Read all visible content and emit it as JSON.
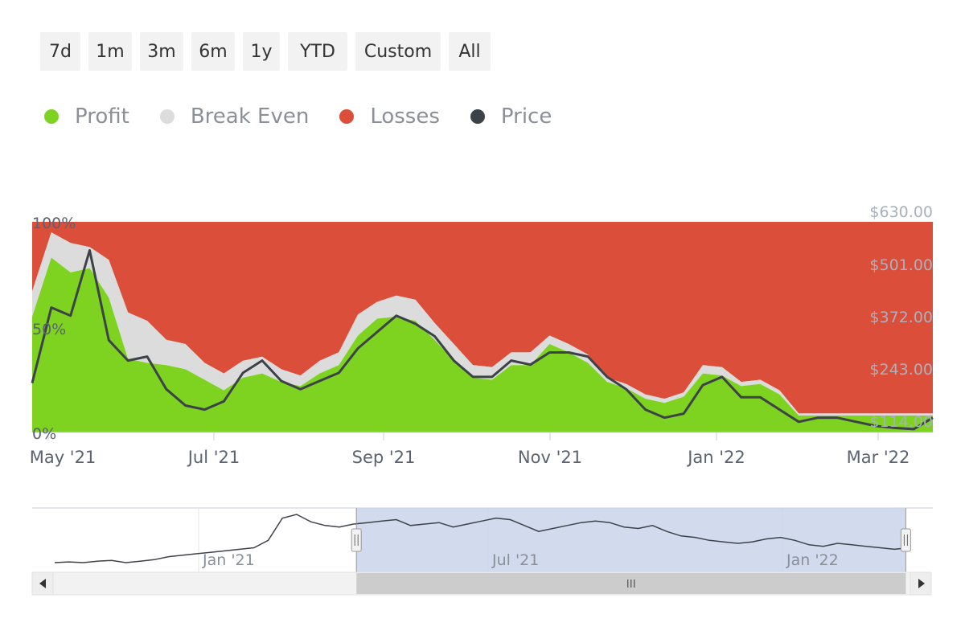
{
  "range_selector": {
    "buttons": [
      "7d",
      "1m",
      "3m",
      "6m",
      "1y",
      "YTD",
      "Custom",
      "All"
    ]
  },
  "legend": {
    "items": [
      {
        "name": "Profit",
        "color": "#7ed321"
      },
      {
        "name": "Break Even",
        "color": "#dcdcdc"
      },
      {
        "name": "Losses",
        "color": "#db4f3a"
      },
      {
        "name": "Price",
        "color": "#3d4148"
      }
    ]
  },
  "chart_data": {
    "type": "area",
    "x_tick_labels": [
      "May '21",
      "Jul '21",
      "Sep '21",
      "Nov '21",
      "Jan '22",
      "Mar '22"
    ],
    "y_left_tick_labels": [
      "0%",
      "50%",
      "100%"
    ],
    "y_left_range": [
      0,
      100
    ],
    "y_right_tick_labels": [
      "$114.00",
      "$243.00",
      "$372.00",
      "$501.00",
      "$630.00"
    ],
    "y_right_range": [
      114,
      630
    ],
    "stacking": "percent",
    "x": [
      "2021-04-26",
      "2021-05-03",
      "2021-05-10",
      "2021-05-17",
      "2021-05-24",
      "2021-05-31",
      "2021-06-07",
      "2021-06-14",
      "2021-06-21",
      "2021-06-28",
      "2021-07-05",
      "2021-07-12",
      "2021-07-19",
      "2021-07-26",
      "2021-08-02",
      "2021-08-09",
      "2021-08-16",
      "2021-08-23",
      "2021-08-30",
      "2021-09-06",
      "2021-09-13",
      "2021-09-20",
      "2021-09-27",
      "2021-10-04",
      "2021-10-11",
      "2021-10-18",
      "2021-10-25",
      "2021-11-01",
      "2021-11-08",
      "2021-11-15",
      "2021-11-22",
      "2021-11-29",
      "2021-12-06",
      "2021-12-13",
      "2021-12-20",
      "2021-12-27",
      "2022-01-03",
      "2022-01-10",
      "2022-01-17",
      "2022-01-24",
      "2022-01-31",
      "2022-02-07",
      "2022-02-14",
      "2022-02-21",
      "2022-02-28",
      "2022-03-07",
      "2022-03-14",
      "2022-03-21"
    ],
    "series": [
      {
        "name": "Profit",
        "values": [
          55,
          83,
          76,
          78,
          64,
          35,
          33,
          32,
          30,
          25,
          20,
          26,
          28,
          24,
          22,
          28,
          32,
          46,
          54,
          55,
          53,
          44,
          34,
          26,
          25,
          32,
          32,
          42,
          38,
          33,
          24,
          21,
          16,
          14,
          17,
          28,
          27,
          22,
          23,
          18,
          8,
          8,
          8,
          8,
          8,
          8,
          8,
          8
        ]
      },
      {
        "name": "Break Even",
        "values": [
          12,
          12,
          14,
          10,
          18,
          22,
          20,
          12,
          12,
          8,
          8,
          8,
          8,
          6,
          5,
          6,
          6,
          10,
          8,
          10,
          10,
          8,
          8,
          6,
          6,
          6,
          6,
          4,
          4,
          4,
          2,
          2,
          2,
          2,
          2,
          4,
          4,
          2,
          2,
          2,
          1,
          1,
          1,
          1,
          1,
          1,
          1,
          1
        ]
      },
      {
        "name": "Losses",
        "values": [
          33,
          5,
          10,
          12,
          18,
          43,
          47,
          56,
          58,
          67,
          72,
          66,
          64,
          70,
          73,
          66,
          62,
          44,
          38,
          35,
          37,
          48,
          58,
          68,
          69,
          62,
          62,
          54,
          58,
          63,
          74,
          77,
          82,
          84,
          81,
          68,
          69,
          76,
          75,
          80,
          91,
          91,
          91,
          91,
          91,
          91,
          91,
          91
        ]
      },
      {
        "name": "Price",
        "values": [
          235,
          420,
          400,
          560,
          340,
          290,
          300,
          220,
          180,
          170,
          190,
          260,
          290,
          240,
          220,
          240,
          260,
          320,
          360,
          400,
          380,
          350,
          290,
          250,
          250,
          290,
          280,
          310,
          310,
          300,
          250,
          220,
          170,
          150,
          160,
          230,
          250,
          200,
          200,
          170,
          140,
          150,
          150,
          140,
          130,
          125,
          122,
          150
        ]
      }
    ]
  },
  "navigator": {
    "x_tick_labels": [
      "Jan '21",
      "Jul '21",
      "Jan '22"
    ],
    "selection": [
      0.36,
      0.97
    ],
    "history_series": [
      70,
      71,
      70,
      72,
      73,
      70,
      72,
      74,
      78,
      80,
      82,
      84,
      86,
      88,
      90,
      100,
      130,
      135,
      125,
      120,
      118,
      122,
      124,
      126,
      128,
      120,
      122,
      124,
      118,
      122,
      126,
      130,
      128,
      120,
      112,
      116,
      120,
      124,
      126,
      124,
      118,
      116,
      120,
      112,
      106,
      104,
      100,
      98,
      96,
      98,
      102,
      104,
      100,
      94,
      92,
      96,
      94,
      92,
      90,
      88,
      90
    ]
  }
}
